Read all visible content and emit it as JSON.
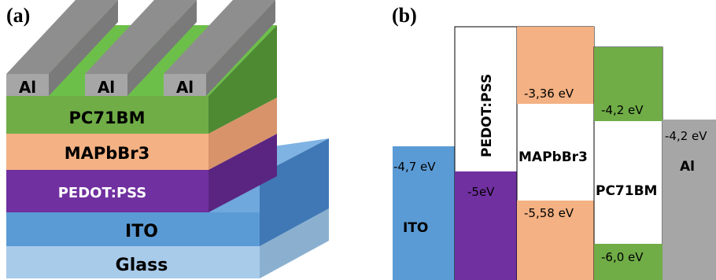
{
  "panel_a": {
    "label": "(a)",
    "layers": {
      "glass": "Glass",
      "ito": "ITO",
      "pedot": "PEDOT:PSS",
      "mapbbr3": "MAPbBr3",
      "pc71bm": "PC71BM"
    },
    "electrodes": [
      "Al",
      "Al",
      "Al"
    ],
    "colors": {
      "glass": "#a9cbea",
      "ito": "#5b9bd5",
      "pedot": "#7030a0",
      "mapbbr3": "#f4b183",
      "pc71bm": "#70ad47",
      "al": "#a6a6a6"
    }
  },
  "panel_b": {
    "label": "(b)",
    "bands": [
      {
        "name": "ITO",
        "levels": [
          "-4,7 eV"
        ]
      },
      {
        "name": "PEDOT:PSS",
        "levels": [
          "-5eV"
        ]
      },
      {
        "name": "MAPbBr3",
        "levels": [
          "-3,36 eV",
          "-5,58 eV"
        ]
      },
      {
        "name": "PC71BM",
        "levels": [
          "-4,2 eV",
          "-6,0 eV"
        ]
      },
      {
        "name": "Al",
        "levels": [
          "-4,2 eV"
        ]
      }
    ]
  }
}
